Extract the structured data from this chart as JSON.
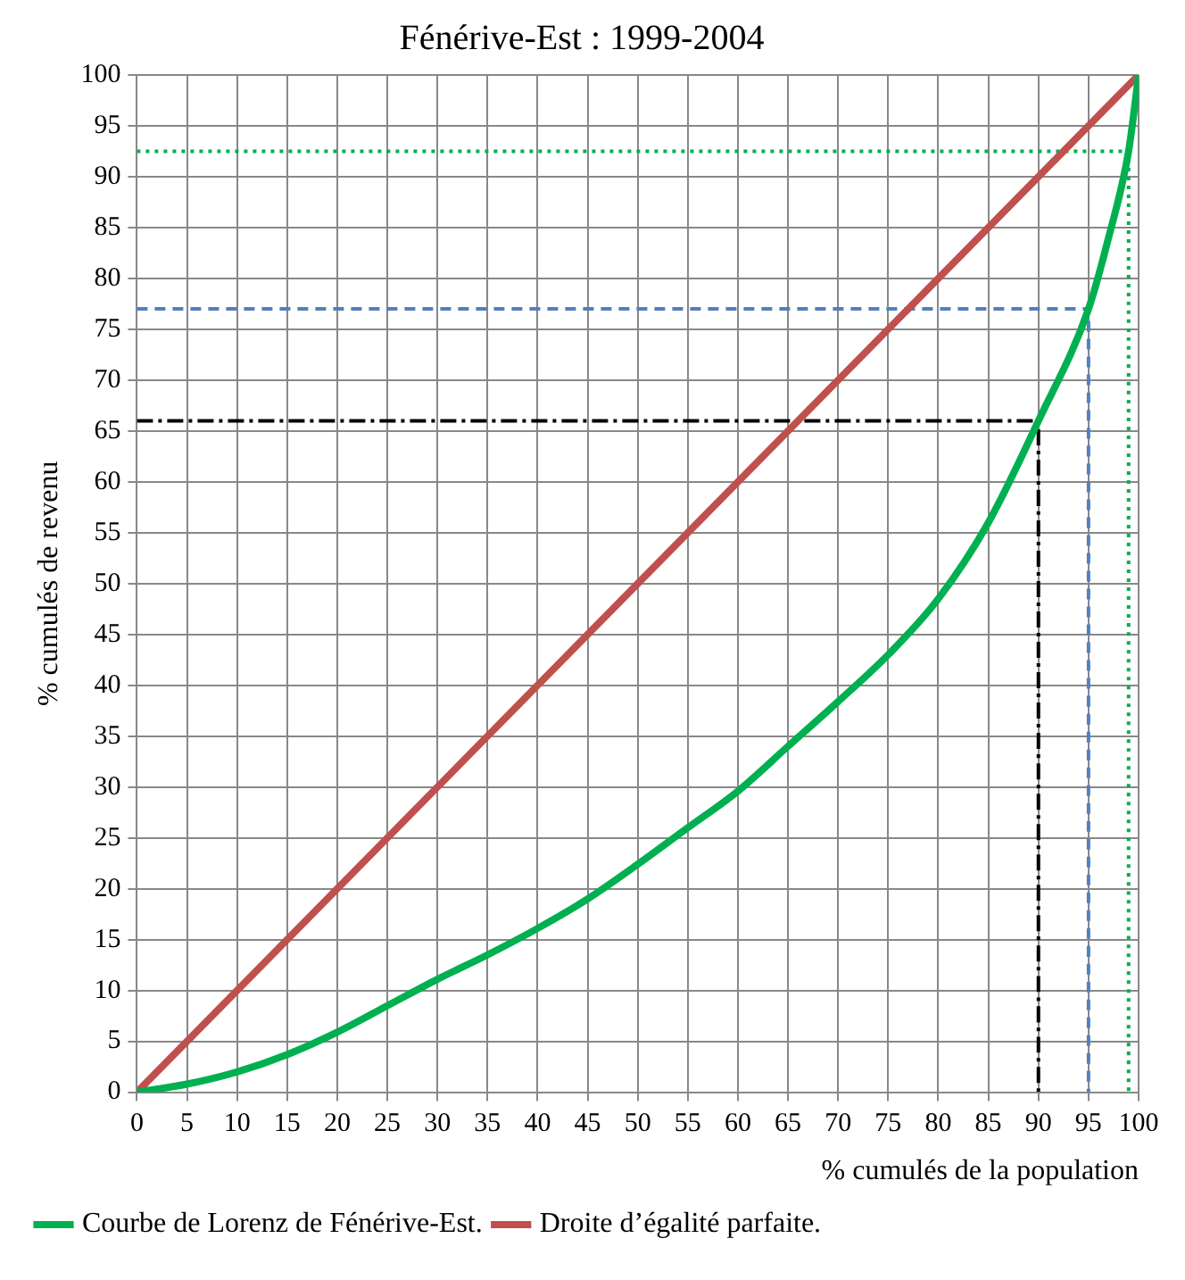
{
  "chart_data": {
    "type": "line",
    "title": "Fénérive-Est : 1999-2004",
    "xlabel": "% cumulés de la population",
    "ylabel": "% cumulés de revenu",
    "xlim": [
      0,
      100
    ],
    "xticks": [
      0,
      5,
      10,
      15,
      20,
      25,
      30,
      35,
      40,
      45,
      50,
      55,
      60,
      65,
      70,
      75,
      80,
      85,
      90,
      95,
      100
    ],
    "ylim": [
      0,
      100
    ],
    "yticks": [
      0,
      5,
      10,
      15,
      20,
      25,
      30,
      35,
      40,
      45,
      50,
      55,
      60,
      65,
      70,
      75,
      80,
      85,
      90,
      95,
      100
    ],
    "grid": true,
    "legend": "bottom",
    "marker": "none",
    "series": [
      {
        "name": "Courbe de Lorenz de Fénérive-Est.",
        "color": "#00b050",
        "line_style": "solid",
        "x": [
          0,
          5,
          10,
          15,
          20,
          25,
          30,
          35,
          40,
          45,
          50,
          55,
          60,
          65,
          70,
          75,
          80,
          85,
          90,
          95,
          97,
          99,
          100
        ],
        "values": [
          0,
          0.8,
          2,
          3.7,
          5.9,
          8.5,
          11.1,
          13.5,
          16.1,
          19,
          22.4,
          26,
          29.6,
          34,
          38.4,
          43,
          48.5,
          56,
          66,
          77,
          84,
          92.5,
          100
        ]
      },
      {
        "name": "Droite d’égalité parfaite.",
        "color": "#c0504d",
        "line_style": "solid",
        "x": [
          0,
          100
        ],
        "values": [
          0,
          100
        ]
      },
      {
        "color": "#000000",
        "line_style": "dashdot",
        "x": [
          0,
          90,
          90
        ],
        "values": [
          66,
          66,
          0
        ]
      },
      {
        "color": "#4f81bd",
        "line_style": "dashed",
        "x": [
          0,
          95,
          95
        ],
        "values": [
          77,
          77,
          0
        ]
      },
      {
        "color": "#00b050",
        "line_style": "dotted",
        "x": [
          0,
          99,
          99
        ],
        "values": [
          92.5,
          92.5,
          0
        ]
      }
    ]
  }
}
